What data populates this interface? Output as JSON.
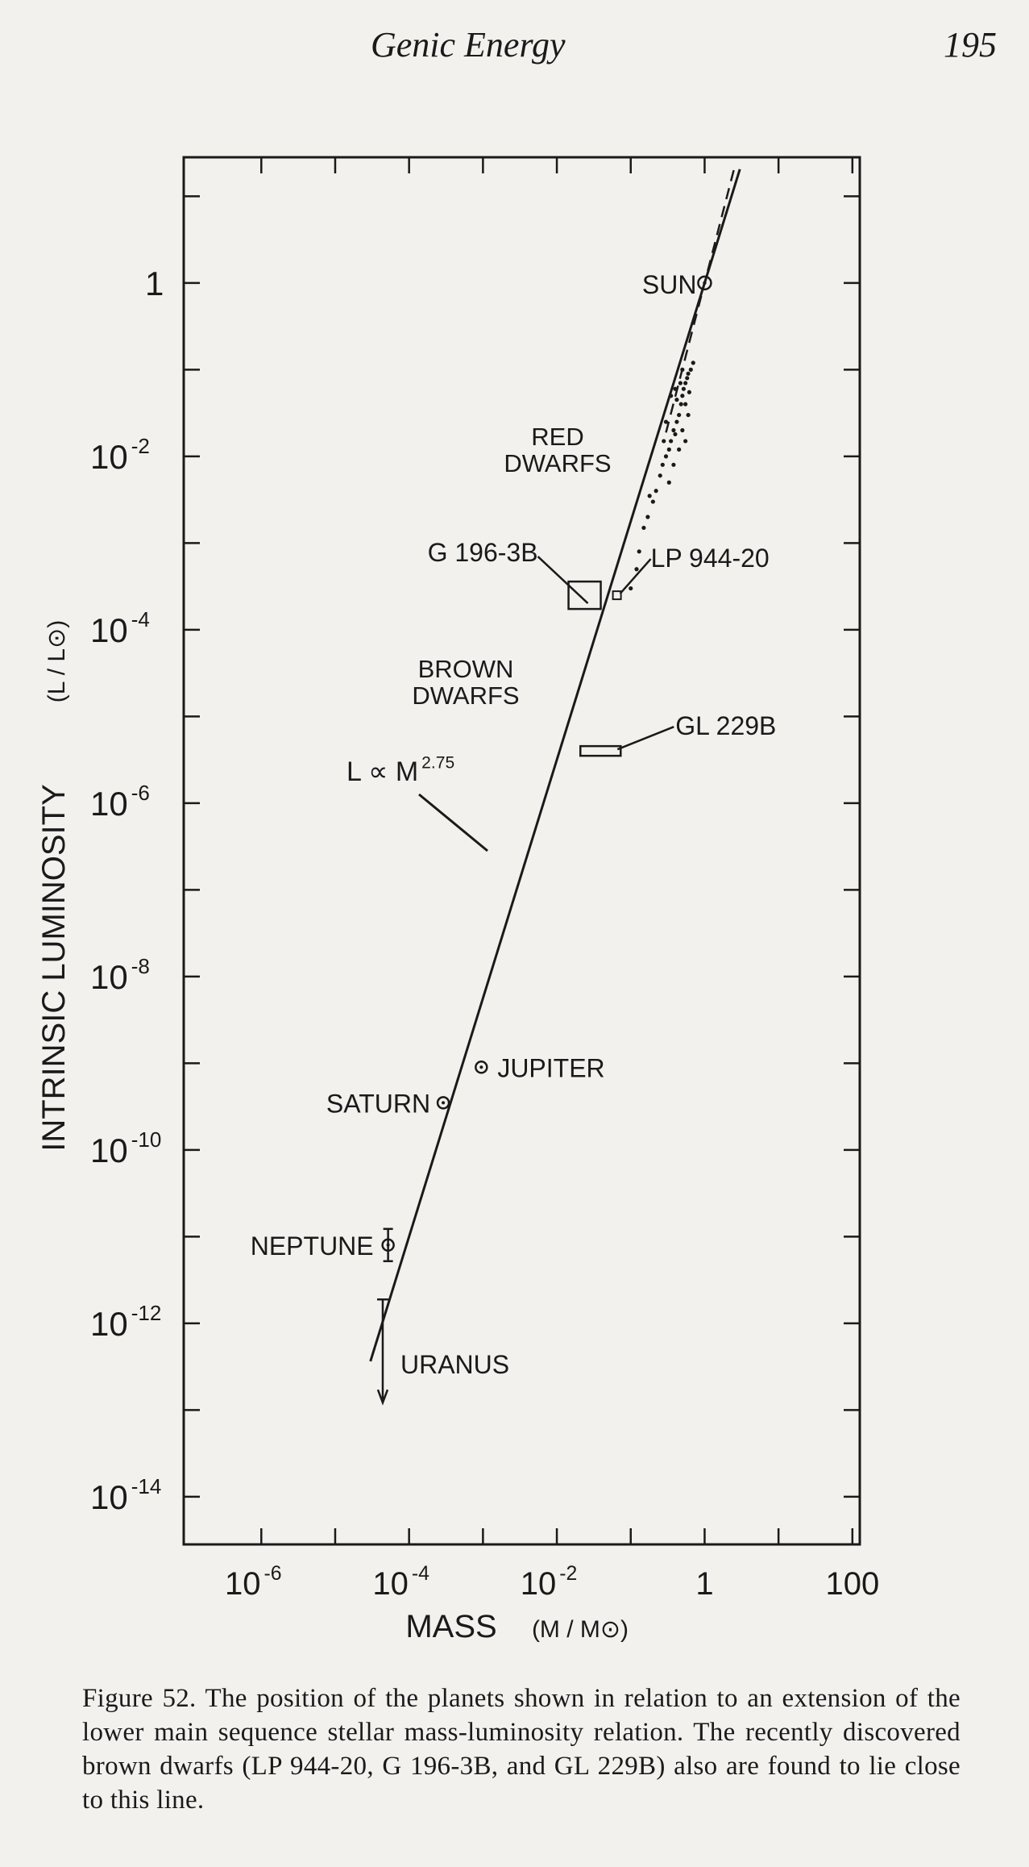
{
  "header": {
    "title": "Genic Energy",
    "page_number": "195"
  },
  "caption": "Figure 52. The position of the planets shown in relation to an extension of the lower main sequence stellar mass-luminosity relation.  The recently discovered brown dwarfs (LP 944-20, G 196-3B, and GL 229B) also are found to lie close to this line.",
  "chart_data": {
    "type": "scatter",
    "x_scale": "log",
    "y_scale": "log",
    "xlim": [
      1e-06,
      100
    ],
    "ylim": [
      1e-14,
      1
    ],
    "grid": false,
    "x_ticks": [
      {
        "value": 1e-06,
        "base": "10",
        "exp": "-6"
      },
      {
        "value": 0.0001,
        "base": "10",
        "exp": "-4"
      },
      {
        "value": 0.01,
        "base": "10",
        "exp": "-2"
      },
      {
        "value": 1,
        "base": "1",
        "exp": ""
      },
      {
        "value": 100,
        "base": "100",
        "exp": ""
      }
    ],
    "y_ticks": [
      {
        "value": 1,
        "base": "1",
        "exp": ""
      },
      {
        "value": 0.01,
        "base": "10",
        "exp": "-2"
      },
      {
        "value": 0.0001,
        "base": "10",
        "exp": "-4"
      },
      {
        "value": 1e-06,
        "base": "10",
        "exp": "-6"
      },
      {
        "value": 1e-08,
        "base": "10",
        "exp": "-8"
      },
      {
        "value": 1e-10,
        "base": "10",
        "exp": "-10"
      },
      {
        "value": 1e-12,
        "base": "10",
        "exp": "-12"
      },
      {
        "value": 1e-14,
        "base": "10",
        "exp": "-14"
      }
    ],
    "xlabel": "MASS",
    "xlabel_unit": "(M / M⊙)",
    "ylabel": "INTRINSIC LUMINOSITY",
    "ylabel_unit": "(L / L⊙)",
    "fit_line": {
      "label_base": "L ∝ M",
      "label_exp": "2.75",
      "exponent": 2.75,
      "from_mass": 3e-05,
      "to_mass": 3
    },
    "dashed_line": {
      "from_mass": 0.3,
      "to_mass": 2.5,
      "exponent": 3.3
    },
    "planets": [
      {
        "name": "JUPITER",
        "mass": 0.00095,
        "luminosity": 9e-10
      },
      {
        "name": "SATURN",
        "mass": 0.00029,
        "luminosity": 3.5e-10
      },
      {
        "name": "NEPTUNE",
        "mass": 5.2e-05,
        "luminosity": 8e-12
      },
      {
        "name": "URANUS",
        "mass": 4.4e-05,
        "luminosity": 5e-13
      }
    ],
    "sun": {
      "name": "SUN",
      "mass": 1,
      "luminosity": 1
    },
    "brown_dwarfs": [
      {
        "name": "G 196-3B",
        "mass": 0.025,
        "luminosity": 0.00025
      },
      {
        "name": "LP 944-20",
        "mass": 0.065,
        "luminosity": 0.00025
      },
      {
        "name": "GL 229B",
        "mass": 0.04,
        "luminosity": 4e-06
      }
    ],
    "regions": [
      {
        "lines": [
          "RED",
          "DWARFS"
        ]
      },
      {
        "lines": [
          "BROWN",
          "DWARFS"
        ]
      }
    ],
    "red_dwarf_points": [
      [
        0.1,
        0.0003
      ],
      [
        0.12,
        0.0005
      ],
      [
        0.13,
        0.0008
      ],
      [
        0.15,
        0.0015
      ],
      [
        0.17,
        0.002
      ],
      [
        0.18,
        0.0035
      ],
      [
        0.2,
        0.003
      ],
      [
        0.22,
        0.004
      ],
      [
        0.25,
        0.006
      ],
      [
        0.27,
        0.008
      ],
      [
        0.3,
        0.01
      ],
      [
        0.33,
        0.012
      ],
      [
        0.35,
        0.015
      ],
      [
        0.38,
        0.02
      ],
      [
        0.4,
        0.018
      ],
      [
        0.42,
        0.025
      ],
      [
        0.45,
        0.03
      ],
      [
        0.48,
        0.04
      ],
      [
        0.5,
        0.05
      ],
      [
        0.52,
        0.06
      ],
      [
        0.55,
        0.07
      ],
      [
        0.58,
        0.08
      ],
      [
        0.6,
        0.09
      ],
      [
        0.45,
        0.012
      ],
      [
        0.5,
        0.02
      ],
      [
        0.55,
        0.015
      ],
      [
        0.4,
        0.06
      ],
      [
        0.35,
        0.05
      ],
      [
        0.6,
        0.03
      ],
      [
        0.65,
        0.1
      ],
      [
        0.5,
        0.1
      ],
      [
        0.38,
        0.008
      ],
      [
        0.3,
        0.025
      ],
      [
        0.42,
        0.045
      ],
      [
        0.47,
        0.07
      ],
      [
        0.7,
        0.12
      ],
      [
        0.55,
        0.04
      ],
      [
        0.33,
        0.005
      ],
      [
        0.28,
        0.015
      ],
      [
        0.62,
        0.055
      ]
    ]
  }
}
